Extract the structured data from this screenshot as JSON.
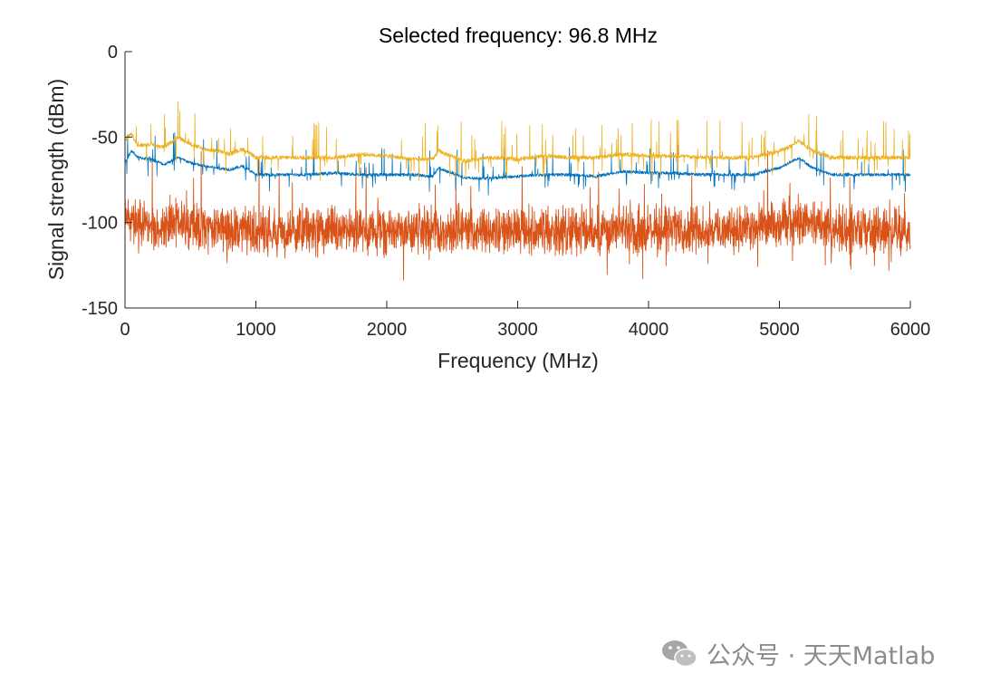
{
  "chart_data": {
    "type": "line",
    "title": "Selected frequency: 96.8 MHz",
    "xlabel": "Frequency (MHz)",
    "ylabel": "Signal strength (dBm)",
    "xlim": [
      0,
      6000
    ],
    "ylim": [
      -150,
      0
    ],
    "xticks": [
      0,
      1000,
      2000,
      3000,
      4000,
      5000,
      6000
    ],
    "yticks": [
      0,
      -50,
      -100,
      -150
    ],
    "grid": false,
    "legend": "none",
    "series": [
      {
        "color": "#EDB120",
        "x": [
          0,
          50,
          100,
          200,
          300,
          400,
          500,
          600,
          700,
          800,
          900,
          1000,
          1200,
          1400,
          1600,
          1800,
          2000,
          2200,
          2350,
          2400,
          2450,
          2500,
          2600,
          2800,
          3000,
          3200,
          3400,
          3600,
          3800,
          4000,
          4200,
          4400,
          4600,
          4800,
          5000,
          5100,
          5150,
          5250,
          5400,
          5600,
          5800,
          6000
        ],
        "values": [
          -52,
          -48,
          -55,
          -54,
          -56,
          -50,
          -54,
          -57,
          -58,
          -60,
          -57,
          -62,
          -62,
          -62,
          -62,
          -60,
          -61,
          -63,
          -63,
          -58,
          -60,
          -61,
          -64,
          -62,
          -63,
          -61,
          -62,
          -62,
          -60,
          -61,
          -61,
          -62,
          -62,
          -62,
          -58,
          -55,
          -52,
          -58,
          -62,
          -62,
          -62,
          -62
        ]
      },
      {
        "color": "#0072BD",
        "x": [
          0,
          50,
          100,
          200,
          300,
          400,
          500,
          600,
          700,
          800,
          900,
          1000,
          1200,
          1400,
          1600,
          1800,
          2000,
          2200,
          2350,
          2400,
          2450,
          2500,
          2600,
          2800,
          3000,
          3200,
          3400,
          3600,
          3800,
          4000,
          4200,
          4400,
          4600,
          4800,
          5000,
          5100,
          5150,
          5250,
          5400,
          5600,
          5800,
          6000
        ],
        "values": [
          -65,
          -58,
          -62,
          -63,
          -66,
          -62,
          -65,
          -67,
          -68,
          -69,
          -67,
          -72,
          -72,
          -72,
          -71,
          -72,
          -72,
          -72,
          -73,
          -68,
          -70,
          -71,
          -74,
          -74,
          -73,
          -72,
          -72,
          -73,
          -70,
          -71,
          -71,
          -72,
          -72,
          -72,
          -68,
          -64,
          -62,
          -68,
          -72,
          -72,
          -72,
          -72
        ]
      },
      {
        "color": "#D95319",
        "x": [
          0,
          100,
          200,
          300,
          400,
          600,
          800,
          1000,
          1500,
          2000,
          2500,
          3000,
          3500,
          4000,
          4500,
          5000,
          5100,
          5200,
          5500,
          6000
        ],
        "values": [
          -98,
          -100,
          -102,
          -104,
          -100,
          -103,
          -104,
          -105,
          -105,
          -105,
          -104,
          -105,
          -105,
          -104,
          -104,
          -103,
          -98,
          -100,
          -104,
          -105
        ]
      }
    ]
  },
  "watermark": {
    "text": "公众号 · 天天Matlab"
  }
}
